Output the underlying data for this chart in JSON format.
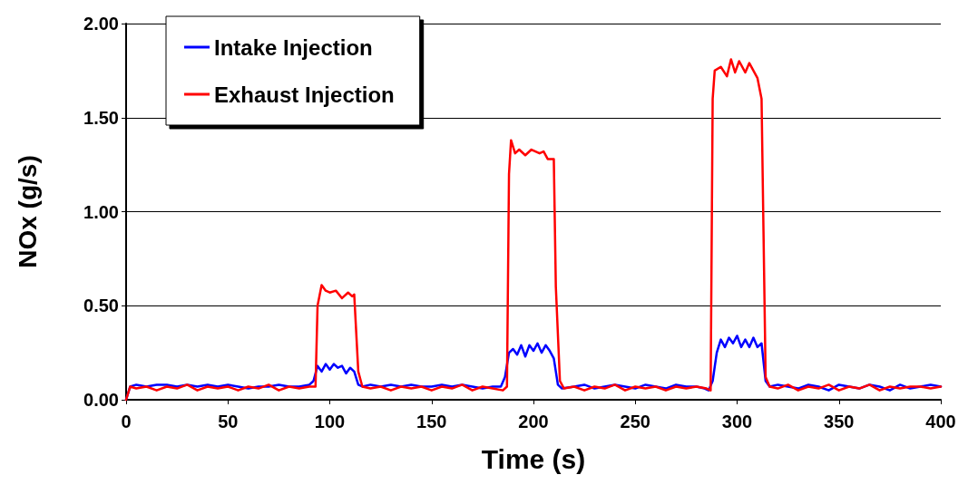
{
  "chart_data": {
    "type": "line",
    "xlabel": "Time (s)",
    "ylabel": "NOx (g/s)",
    "xlim": [
      0,
      400
    ],
    "xticks": [
      0,
      50,
      100,
      150,
      200,
      250,
      300,
      350,
      400
    ],
    "ylim": [
      0,
      2
    ],
    "yticks": [
      {
        "value": 0,
        "label": "0.00"
      },
      {
        "value": 0.5,
        "label": "0.50"
      },
      {
        "value": 1,
        "label": "1.00"
      },
      {
        "value": 1.5,
        "label": "1.50"
      },
      {
        "value": 2,
        "label": "2.00"
      }
    ],
    "grid": "y",
    "legend": "top left",
    "marker": "none",
    "line_style": "solid",
    "series": [
      {
        "name": "Intake Injection",
        "color": "#0000ff",
        "x": [
          0,
          2,
          5,
          10,
          15,
          20,
          25,
          30,
          35,
          40,
          45,
          50,
          55,
          60,
          65,
          70,
          75,
          80,
          85,
          90,
          92,
          94,
          96,
          98,
          100,
          102,
          104,
          106,
          108,
          110,
          112,
          114,
          116,
          120,
          125,
          130,
          135,
          140,
          145,
          150,
          155,
          160,
          165,
          170,
          175,
          180,
          184,
          186,
          188,
          190,
          192,
          194,
          196,
          198,
          200,
          202,
          204,
          206,
          208,
          210,
          212,
          214,
          220,
          225,
          230,
          235,
          240,
          245,
          250,
          255,
          260,
          265,
          270,
          275,
          280,
          284,
          286,
          288,
          290,
          292,
          294,
          296,
          298,
          300,
          302,
          304,
          306,
          308,
          310,
          312,
          314,
          316,
          320,
          325,
          330,
          335,
          340,
          345,
          350,
          355,
          360,
          365,
          370,
          375,
          380,
          385,
          390,
          395,
          400
        ],
        "values": [
          0,
          0.07,
          0.08,
          0.07,
          0.08,
          0.08,
          0.07,
          0.08,
          0.07,
          0.08,
          0.07,
          0.08,
          0.07,
          0.06,
          0.07,
          0.07,
          0.08,
          0.07,
          0.07,
          0.08,
          0.1,
          0.18,
          0.15,
          0.19,
          0.16,
          0.19,
          0.17,
          0.18,
          0.14,
          0.17,
          0.15,
          0.08,
          0.07,
          0.08,
          0.07,
          0.08,
          0.07,
          0.08,
          0.07,
          0.07,
          0.08,
          0.07,
          0.08,
          0.07,
          0.06,
          0.07,
          0.07,
          0.12,
          0.25,
          0.27,
          0.24,
          0.29,
          0.23,
          0.29,
          0.26,
          0.3,
          0.25,
          0.29,
          0.26,
          0.22,
          0.08,
          0.06,
          0.07,
          0.08,
          0.06,
          0.07,
          0.08,
          0.07,
          0.06,
          0.08,
          0.07,
          0.06,
          0.08,
          0.07,
          0.07,
          0.06,
          0.05,
          0.1,
          0.25,
          0.32,
          0.28,
          0.33,
          0.3,
          0.34,
          0.28,
          0.32,
          0.28,
          0.33,
          0.28,
          0.3,
          0.1,
          0.07,
          0.08,
          0.07,
          0.06,
          0.08,
          0.07,
          0.05,
          0.08,
          0.07,
          0.06,
          0.08,
          0.07,
          0.05,
          0.08,
          0.06,
          0.07,
          0.08,
          0.07
        ]
      },
      {
        "name": "Exhaust Injection",
        "color": "#ff0000",
        "x": [
          0,
          2,
          5,
          10,
          15,
          20,
          25,
          30,
          35,
          40,
          45,
          50,
          55,
          60,
          65,
          70,
          75,
          80,
          85,
          90,
          93,
          94,
          96,
          98,
          100,
          103,
          106,
          109,
          111,
          112,
          114,
          116,
          120,
          125,
          130,
          135,
          140,
          145,
          150,
          155,
          160,
          165,
          170,
          175,
          180,
          185,
          187,
          188,
          189,
          191,
          193,
          196,
          199,
          203,
          205,
          207,
          210,
          211,
          213,
          215,
          220,
          225,
          230,
          235,
          240,
          245,
          250,
          255,
          260,
          265,
          270,
          275,
          280,
          285,
          287,
          288,
          289,
          292,
          295,
          297,
          299,
          301,
          304,
          306,
          310,
          312,
          314,
          316,
          320,
          325,
          330,
          335,
          340,
          345,
          350,
          355,
          360,
          365,
          370,
          375,
          380,
          385,
          390,
          395,
          400
        ],
        "values": [
          0,
          0.07,
          0.06,
          0.07,
          0.05,
          0.07,
          0.06,
          0.08,
          0.05,
          0.07,
          0.06,
          0.07,
          0.05,
          0.07,
          0.06,
          0.08,
          0.05,
          0.07,
          0.06,
          0.07,
          0.07,
          0.5,
          0.61,
          0.58,
          0.57,
          0.58,
          0.54,
          0.57,
          0.55,
          0.56,
          0.15,
          0.07,
          0.06,
          0.07,
          0.05,
          0.07,
          0.06,
          0.07,
          0.05,
          0.07,
          0.06,
          0.08,
          0.05,
          0.07,
          0.06,
          0.05,
          0.07,
          1.2,
          1.38,
          1.31,
          1.33,
          1.3,
          1.33,
          1.31,
          1.32,
          1.28,
          1.28,
          0.6,
          0.1,
          0.06,
          0.07,
          0.05,
          0.07,
          0.06,
          0.08,
          0.05,
          0.07,
          0.06,
          0.07,
          0.05,
          0.07,
          0.06,
          0.07,
          0.06,
          0.05,
          1.6,
          1.75,
          1.77,
          1.72,
          1.81,
          1.74,
          1.8,
          1.74,
          1.79,
          1.71,
          1.6,
          0.12,
          0.07,
          0.06,
          0.08,
          0.05,
          0.07,
          0.06,
          0.08,
          0.05,
          0.07,
          0.06,
          0.08,
          0.05,
          0.07,
          0.06,
          0.07,
          0.07,
          0.06,
          0.07
        ]
      }
    ]
  }
}
